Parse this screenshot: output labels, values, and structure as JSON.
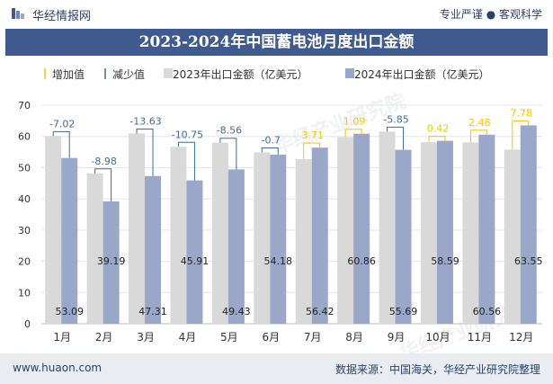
{
  "header": {
    "brand": "华经情报网",
    "slogan": "专业严谨 ● 客观科学"
  },
  "footer": {
    "site": "www.huaon.com",
    "source": "数据来源：中国海关，华经产业研究院整理"
  },
  "watermark": {
    "text": "华经产业研究院",
    "url": "www.huaon.com"
  },
  "colors": {
    "bar2023": "#d9d9d9",
    "bar2024": "#9aa7c9",
    "increase": "#f5c400",
    "decrease": "#3f6c97",
    "titlebar": "#3f5a8f"
  },
  "chart_data": {
    "type": "bar",
    "title": "2023-2024年中国蓄电池月度出口金额",
    "categories": [
      "1月",
      "2月",
      "3月",
      "4月",
      "5月",
      "6月",
      "7月",
      "8月",
      "9月",
      "10月",
      "11月",
      "12月"
    ],
    "series": [
      {
        "name": "2023年出口金额（亿美元）",
        "values": [
          60.11,
          48.17,
          60.94,
          56.66,
          57.99,
          54.88,
          52.71,
          59.77,
          61.54,
          58.17,
          58.08,
          55.77
        ]
      },
      {
        "name": "2024年出口金额（亿美元）",
        "values": [
          53.09,
          39.19,
          47.31,
          45.91,
          49.43,
          54.18,
          56.42,
          60.86,
          55.69,
          58.59,
          60.56,
          63.55
        ]
      }
    ],
    "differences": [
      "-7.02",
      "-8.98",
      "-13.63",
      "-10.75",
      "-8.56",
      "-0.7",
      "3.71",
      "1.09",
      "-5.85",
      "0.42",
      "2.48",
      "7.78"
    ],
    "legend": [
      "增加值",
      "减少值",
      "2023年出口金额（亿美元）",
      "2024年出口金额（亿美元）"
    ],
    "legend_position": "top-left",
    "yticks": [
      "0",
      "10",
      "20",
      "30",
      "40",
      "50",
      "60",
      "70"
    ],
    "ylim": [
      0,
      70
    ],
    "grid": true
  }
}
